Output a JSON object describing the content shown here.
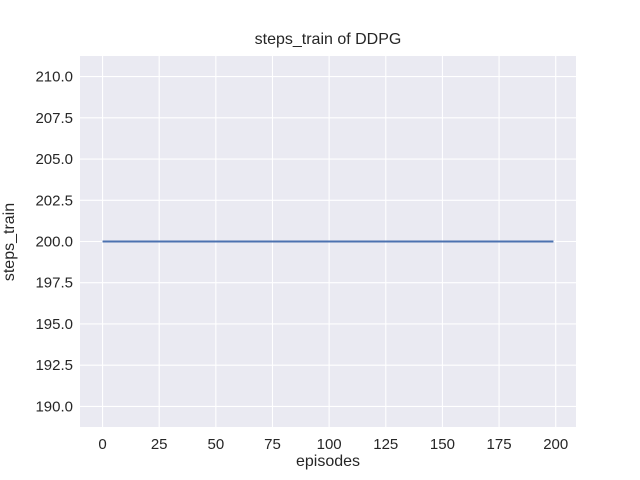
{
  "chart_data": {
    "type": "line",
    "title": "steps_train of DDPG",
    "xlabel": "episodes",
    "ylabel": "steps_train",
    "xlim": [
      -9.95,
      208.95
    ],
    "ylim": [
      188.75,
      211.25
    ],
    "xticks": {
      "values": [
        0,
        25,
        50,
        75,
        100,
        125,
        150,
        175,
        200
      ],
      "labels": [
        "0",
        "25",
        "50",
        "75",
        "100",
        "125",
        "150",
        "175",
        "200"
      ]
    },
    "yticks": {
      "values": [
        190.0,
        192.5,
        195.0,
        197.5,
        200.0,
        202.5,
        205.0,
        207.5,
        210.0
      ],
      "labels": [
        "190.0",
        "192.5",
        "195.0",
        "197.5",
        "200.0",
        "202.5",
        "205.0",
        "207.5",
        "210.0"
      ]
    },
    "grid": true,
    "legend": false,
    "series": [
      {
        "name": "steps_train",
        "color": "#4C72B0",
        "x": [
          0,
          199
        ],
        "y": [
          200,
          200
        ]
      }
    ],
    "style": {
      "figure_background": "#ffffff",
      "plot_background": "#EAEAF2",
      "grid_color": "#ffffff",
      "text_color": "#262626",
      "line_width": 2
    }
  }
}
